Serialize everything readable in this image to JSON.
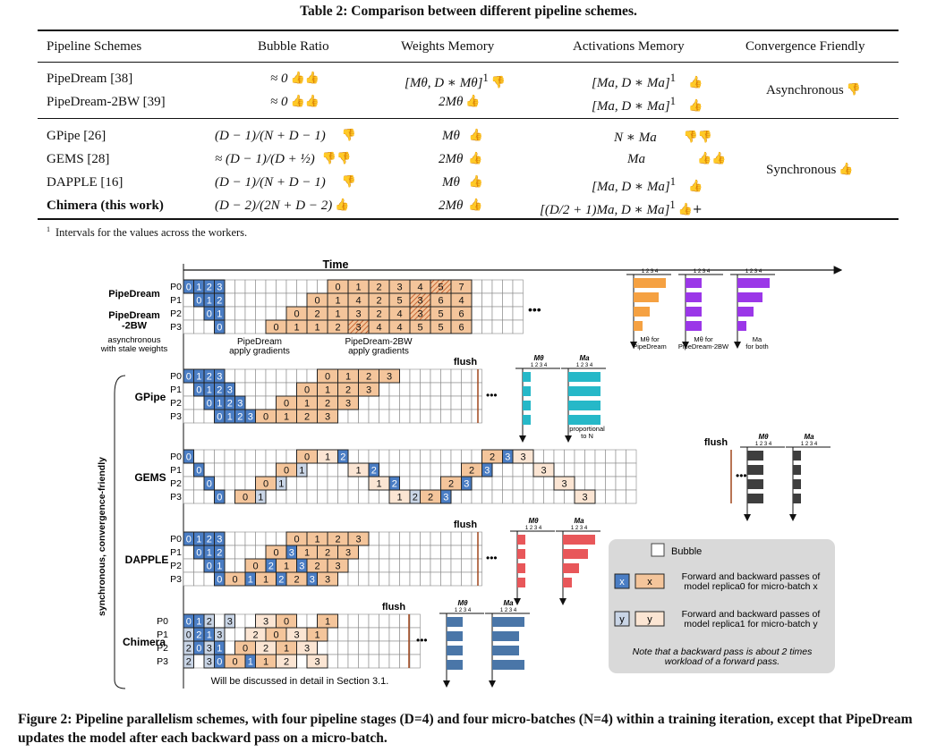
{
  "table": {
    "caption": "Table 2: Comparison between different pipeline schemes.",
    "headers": [
      "Pipeline Schemes",
      "Bubble Ratio",
      "Weights Memory",
      "Activations Memory",
      "Convergence Friendly"
    ],
    "rows": [
      {
        "scheme": "PipeDream [38]",
        "bubble": "≈ 0",
        "weights": "[Mθ, D ∗ Mθ]",
        "activations": "[Ma, D ∗ Ma]"
      },
      {
        "scheme": "PipeDream-2BW [39]",
        "bubble": "≈ 0",
        "weights": "2Mθ",
        "activations": "[Ma, D ∗ Ma]"
      },
      {
        "scheme": "GPipe [26]",
        "bubble": "(D − 1)/(N + D − 1)",
        "weights": "Mθ",
        "activations": "N ∗ Ma"
      },
      {
        "scheme": "GEMS [28]",
        "bubble": "≈ (D − 1)/(D + ½)",
        "weights": "2Mθ",
        "activations": "Ma"
      },
      {
        "scheme": "DAPPLE [16]",
        "bubble": "(D − 1)/(N + D − 1)",
        "weights": "Mθ",
        "activations": "[Ma, D ∗ Ma]"
      },
      {
        "scheme": "Chimera (this work)",
        "bubble": "(D − 2)/(2N + D − 2)",
        "weights": "2Mθ",
        "activations": "[(D/2 + 1)Ma, D ∗ Ma]"
      }
    ],
    "convergence": [
      "Asynchronous",
      "Synchronous"
    ],
    "footnote_mark": "1",
    "footnote": "Intervals for the values across the workers."
  },
  "figure": {
    "time_label": "Time",
    "stage_labels": [
      "P0",
      "P1",
      "P2",
      "P3"
    ],
    "scheme_labels": [
      "PipeDream",
      "PipeDream\n-2BW",
      "GPipe",
      "GEMS",
      "DAPPLE",
      "Chimera"
    ],
    "async_note": "asynchronous\nwith stale weights",
    "sync_note": "synchronous, convergence-friendly",
    "apply_gradients": [
      "PipeDream\napply gradients",
      "PipeDream-2BW\napply gradients"
    ],
    "flush_label": "flush",
    "mem_labels": {
      "mtheta": "Mθ",
      "ma": "Ma",
      "ticks": "1 2 3 4"
    },
    "pipedream_mem_notes": [
      "Mθ for\nPipeDream",
      "Mθ for\nPipeDream-2BW",
      "Ma\nfor both"
    ],
    "gpipe_note": "proportional\nto N",
    "chimera_note": "Will be discussed in detail in Section 3.1.",
    "legend": {
      "bubble": "Bubble",
      "replica0": "Forward and backward passes of model replica0 for micro-batch x",
      "replica1": "Forward and backward passes of model replica1 for micro-batch y",
      "x": "x",
      "y": "y",
      "note": "Note that a backward pass is about 2 times workload of a forward pass."
    },
    "colors": {
      "forward": "#4a7dc4",
      "backward": "#f4c59b",
      "chimera_light": "#c9d5e6",
      "chimera_back_light": "#fbe5d3",
      "orange": "#f5a142",
      "purple": "#9b37e8",
      "teal": "#26b8c8",
      "gray": "#3e3e3e",
      "red": "#e8575a",
      "steel": "#4a76a8"
    }
  },
  "figure_caption": "Figure 2:  Pipeline parallelism schemes, with four pipeline stages (D=4) and four micro-batches (N=4) within a training iteration, except that PipeDream updates the model after each backward pass on a micro-batch."
}
